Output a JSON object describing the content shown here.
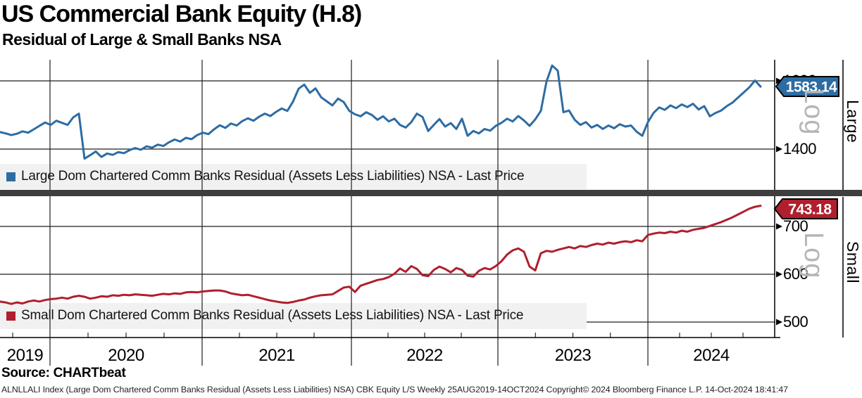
{
  "header": {
    "title": "US Commercial Bank Equity (H.8)",
    "subtitle": "Residual of Large & Small Banks NSA"
  },
  "source_label": "Source: CHARTbeat",
  "footer": "ALNLLALI Index (Large Dom Chartered Comm Banks Residual (Assets Less Liabilities) NSA) CBK Equity L/S  Weekly 25AUG2019-14OCT2024   Copyright© 2024 Bloomberg Finance L.P.   14-Oct-2024 18:41:47",
  "x_axis": {
    "year_labels": [
      "2019",
      "2020",
      "2021",
      "2022",
      "2023",
      "2024"
    ]
  },
  "panels": [
    {
      "id": "large",
      "side_label": "Large",
      "scale_label": "Log",
      "legend": "Large Dom Chartered Comm Banks Residual (Assets Less Liabilities) NSA - Last Price",
      "last_price": "1583.14",
      "color": "#2d6ca3",
      "yticks": [
        1600,
        1400
      ]
    },
    {
      "id": "small",
      "side_label": "Small",
      "scale_label": "Log",
      "legend": "Small Dom Chartered Comm Banks Residual (Assets Less Liabilities) NSA - Last Price",
      "last_price": "743.18",
      "color": "#b01f2e",
      "yticks": [
        700,
        600,
        500
      ]
    }
  ],
  "chart_data": [
    {
      "type": "line",
      "title": "Large Dom Chartered Comm Banks Residual (Assets Less Liabilities) NSA - Last Price",
      "x": "weekly, 25AUG2019 to 14OCT2024",
      "xlabel": "",
      "ylabel": "Log scale",
      "y_axis_ticks": [
        1400,
        1600
      ],
      "ylim": [
        1360,
        1670
      ],
      "legend_position": "bottom-left band",
      "grid": true,
      "last_value": 1583.14,
      "values": [
        1450,
        1446,
        1441,
        1445,
        1452,
        1448,
        1458,
        1468,
        1478,
        1471,
        1483,
        1477,
        1471,
        1493,
        1504,
        1372,
        1382,
        1393,
        1377,
        1387,
        1383,
        1391,
        1388,
        1397,
        1403,
        1398,
        1408,
        1404,
        1413,
        1409,
        1420,
        1428,
        1422,
        1433,
        1429,
        1441,
        1448,
        1444,
        1458,
        1470,
        1462,
        1475,
        1469,
        1482,
        1490,
        1483,
        1495,
        1504,
        1497,
        1509,
        1519,
        1512,
        1539,
        1577,
        1589,
        1565,
        1578,
        1552,
        1540,
        1528,
        1548,
        1538,
        1512,
        1502,
        1496,
        1508,
        1500,
        1486,
        1496,
        1481,
        1489,
        1471,
        1463,
        1479,
        1504,
        1494,
        1453,
        1471,
        1488,
        1466,
        1476,
        1459,
        1489,
        1439,
        1453,
        1446,
        1459,
        1454,
        1468,
        1477,
        1489,
        1481,
        1497,
        1484,
        1468,
        1487,
        1512,
        1598,
        1645,
        1630,
        1508,
        1513,
        1486,
        1471,
        1479,
        1463,
        1471,
        1459,
        1469,
        1461,
        1473,
        1466,
        1469,
        1451,
        1439,
        1479,
        1506,
        1522,
        1515,
        1528,
        1520,
        1531,
        1523,
        1533,
        1516,
        1526,
        1496,
        1506,
        1513,
        1526,
        1536,
        1551,
        1566,
        1581,
        1601,
        1583.14
      ]
    },
    {
      "type": "line",
      "title": "Small Dom Chartered Comm Banks Residual (Assets Less Liabilities) NSA - Last Price",
      "x": "weekly, 25AUG2019 to 14OCT2024",
      "xlabel": "",
      "ylabel": "Log scale",
      "y_axis_ticks": [
        500,
        600,
        700
      ],
      "ylim": [
        495,
        760
      ],
      "legend_position": "bottom-left band",
      "grid": true,
      "last_value": 743.18,
      "values": [
        543,
        541,
        538,
        541,
        539,
        543,
        545,
        543,
        546,
        548,
        549,
        551,
        549,
        553,
        555,
        553,
        549,
        551,
        554,
        553,
        556,
        555,
        557,
        556,
        558,
        557,
        556,
        555,
        557,
        559,
        558,
        560,
        559,
        562,
        563,
        562,
        564,
        565,
        566,
        566,
        564,
        560,
        558,
        556,
        557,
        554,
        551,
        548,
        545,
        543,
        541,
        540,
        542,
        545,
        547,
        551,
        554,
        556,
        557,
        558,
        565,
        572,
        574,
        563,
        576,
        580,
        584,
        588,
        590,
        594,
        601,
        612,
        605,
        617,
        611,
        598,
        596,
        609,
        616,
        611,
        604,
        613,
        609,
        597,
        595,
        607,
        613,
        610,
        617,
        627,
        641,
        650,
        654,
        647,
        616,
        608,
        644,
        649,
        647,
        651,
        654,
        657,
        654,
        659,
        657,
        661,
        664,
        662,
        666,
        664,
        667,
        669,
        667,
        671,
        669,
        682,
        685,
        687,
        686,
        689,
        687,
        691,
        689,
        693,
        695,
        697,
        701,
        705,
        709,
        714,
        719,
        725,
        731,
        737,
        741,
        743.18
      ]
    }
  ]
}
